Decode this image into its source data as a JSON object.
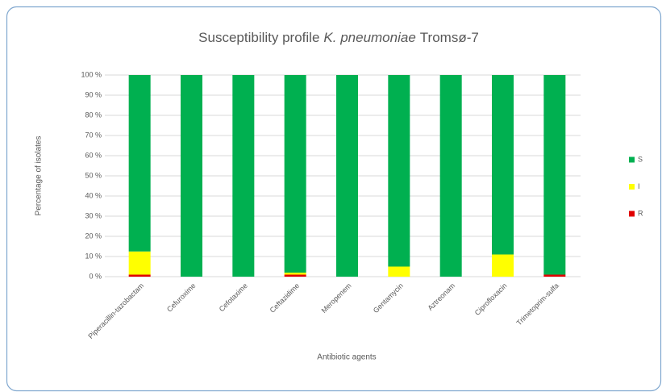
{
  "chart_data": {
    "type": "stacked_bar",
    "title": [
      "Susceptibility profile",
      "K. pneumoniae",
      "Tromsø-7"
    ],
    "x_label": "Antibiotic agents",
    "y_label": "Percentage of isolates",
    "categories": [
      "Piperacillin-tazobactam",
      "Cefuroxime",
      "Cefotaxime",
      "Ceftazidime",
      "Meropenem",
      "Gentamycin",
      "Aztreonam",
      "Ciprofloxacin",
      "Trimetoprim-sulfa"
    ],
    "series": [
      {
        "name": "S",
        "color": "#00b050",
        "values": [
          87.5,
          100,
          100,
          98,
          100,
          95,
          100,
          89,
          99
        ]
      },
      {
        "name": "I",
        "color": "#ffff00",
        "values": [
          11.5,
          0,
          0,
          1,
          0,
          5,
          0,
          11,
          0
        ]
      },
      {
        "name": "R",
        "color": "#e00000",
        "values": [
          1,
          0,
          0,
          1,
          0,
          0,
          0,
          0,
          1
        ]
      }
    ],
    "ylim": [
      0,
      100
    ],
    "yticks": [
      {
        "value": 0,
        "label": "0 %"
      },
      {
        "value": 10,
        "label": "10 %"
      },
      {
        "value": 20,
        "label": "20 %"
      },
      {
        "value": 30,
        "label": "30 %"
      },
      {
        "value": 40,
        "label": "40 %"
      },
      {
        "value": 50,
        "label": "50 %"
      },
      {
        "value": 60,
        "label": "60 %"
      },
      {
        "value": 70,
        "label": "70 %"
      },
      {
        "value": 80,
        "label": "80 %"
      },
      {
        "value": 90,
        "label": "90 %"
      },
      {
        "value": 100,
        "label": "100 %"
      }
    ],
    "grid": true,
    "legend": "right"
  }
}
